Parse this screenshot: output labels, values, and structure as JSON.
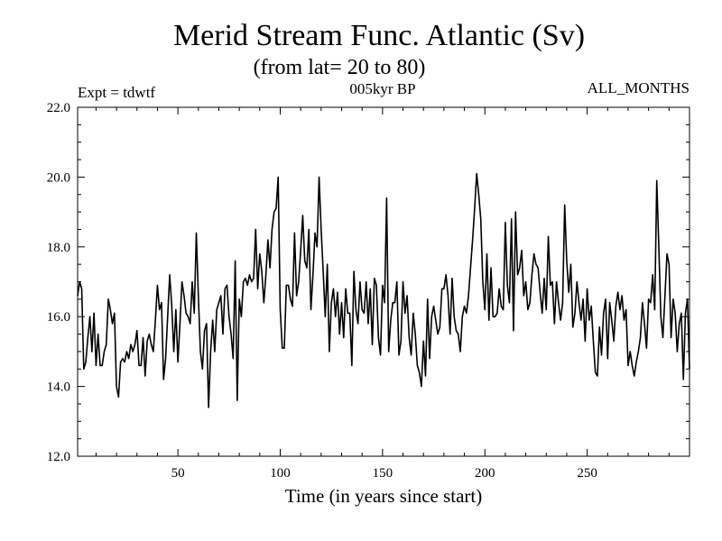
{
  "chart_data": {
    "type": "line",
    "title": "Merid Stream Func. Atlantic (Sv)",
    "subtitle": "(from lat= 20 to 80)",
    "expt_label": "Expt = tdwtf",
    "period_label": "005kyr BP",
    "months_label": "ALL_MONTHS",
    "xlabel": "Time (in years since start)",
    "ylabel": "",
    "xlim": [
      1,
      300
    ],
    "ylim": [
      12.0,
      22.0
    ],
    "x_ticks": [
      50,
      100,
      150,
      200,
      250
    ],
    "x_tick_labels": [
      "50",
      "100",
      "150",
      "200",
      "250"
    ],
    "y_ticks": [
      12.0,
      14.0,
      16.0,
      18.0,
      20.0,
      22.0
    ],
    "y_tick_labels": [
      "12.0",
      "14.0",
      "16.0",
      "18.0",
      "20.0",
      "22.0"
    ],
    "grid": false,
    "line_color": "#000000",
    "series": [
      {
        "name": "Merid Stream Func. Atlantic",
        "x_start": 1,
        "x_step": 1,
        "values": [
          16.6,
          17.0,
          16.8,
          14.5,
          14.7,
          15.4,
          16.0,
          15.0,
          16.1,
          14.6,
          15.5,
          14.6,
          14.6,
          15.0,
          15.2,
          16.5,
          16.2,
          15.8,
          16.1,
          14.0,
          13.7,
          14.7,
          14.8,
          14.7,
          15.0,
          14.8,
          15.2,
          15.0,
          15.2,
          15.6,
          14.6,
          14.6,
          15.4,
          14.3,
          15.3,
          15.5,
          15.2,
          15.0,
          15.9,
          16.9,
          16.2,
          16.4,
          14.2,
          14.8,
          16.0,
          17.2,
          16.3,
          15.0,
          16.2,
          14.7,
          15.8,
          17.0,
          16.6,
          16.1,
          16.0,
          15.8,
          17.0,
          16.1,
          18.4,
          16.6,
          15.0,
          14.5,
          15.6,
          15.8,
          13.4,
          15.0,
          15.9,
          15.0,
          16.2,
          16.4,
          16.6,
          15.5,
          16.8,
          16.9,
          16.0,
          15.5,
          14.8,
          17.6,
          13.6,
          16.5,
          16.0,
          17.0,
          17.1,
          16.9,
          17.2,
          17.0,
          17.1,
          18.5,
          16.8,
          17.8,
          17.3,
          16.4,
          17.2,
          18.2,
          17.4,
          18.5,
          19.0,
          19.1,
          20.0,
          16.2,
          15.1,
          15.1,
          16.9,
          16.9,
          16.5,
          16.3,
          18.4,
          16.6,
          17.0,
          17.9,
          18.9,
          17.6,
          17.4,
          18.5,
          16.2,
          17.2,
          18.4,
          18.0,
          20.0,
          18.5,
          17.3,
          16.0,
          17.5,
          15.0,
          16.4,
          16.8,
          16.0,
          16.7,
          15.5,
          16.4,
          15.4,
          16.8,
          16.1,
          16.1,
          14.6,
          17.3,
          16.2,
          15.8,
          17.0,
          16.2,
          16.1,
          17.0,
          15.8,
          16.8,
          15.2,
          17.1,
          16.9,
          15.4,
          14.9,
          16.9,
          16.4,
          19.4,
          15.0,
          15.9,
          16.4,
          16.4,
          17.0,
          14.9,
          15.3,
          17.0,
          16.1,
          16.6,
          15.4,
          14.9,
          16.1,
          15.5,
          14.6,
          14.4,
          14.0,
          15.3,
          14.3,
          16.5,
          14.8,
          16.0,
          16.3,
          15.9,
          15.5,
          15.7,
          16.8,
          16.8,
          17.2,
          16.6,
          15.5,
          17.1,
          16.0,
          15.6,
          15.5,
          15.0,
          16.0,
          16.3,
          16.1,
          16.6,
          17.4,
          18.2,
          19.1,
          20.1,
          19.5,
          18.8,
          17.0,
          16.2,
          17.8,
          15.9,
          17.4,
          16.0,
          16.0,
          16.1,
          16.8,
          16.3,
          16.2,
          18.7,
          16.9,
          16.4,
          18.8,
          15.6,
          19.0,
          17.2,
          17.4,
          17.9,
          16.6,
          17.0,
          16.2,
          16.4,
          17.2,
          17.8,
          17.5,
          17.4,
          16.7,
          16.1,
          17.1,
          16.2,
          18.3,
          16.9,
          17.0,
          15.8,
          17.0,
          16.4,
          15.9,
          16.4,
          19.2,
          17.6,
          16.7,
          17.5,
          15.7,
          16.1,
          17.0,
          16.4,
          15.9,
          16.5,
          15.3,
          16.8,
          15.9,
          16.3,
          15.3,
          14.4,
          14.3,
          15.7,
          14.9,
          16.1,
          16.5,
          14.8,
          16.4,
          15.9,
          15.3,
          16.3,
          16.7,
          16.2,
          16.6,
          15.9,
          16.2,
          14.6,
          15.0,
          14.6,
          14.3,
          14.7,
          15.0,
          15.4,
          16.4,
          15.8,
          15.1,
          16.5,
          16.4,
          17.2,
          16.2,
          19.9,
          18.0,
          16.0,
          15.4,
          16.6,
          17.8,
          17.5,
          15.4,
          16.5,
          16.1,
          15.0,
          15.8,
          16.1,
          14.2,
          16.1,
          16.5,
          14.5
        ]
      }
    ]
  }
}
